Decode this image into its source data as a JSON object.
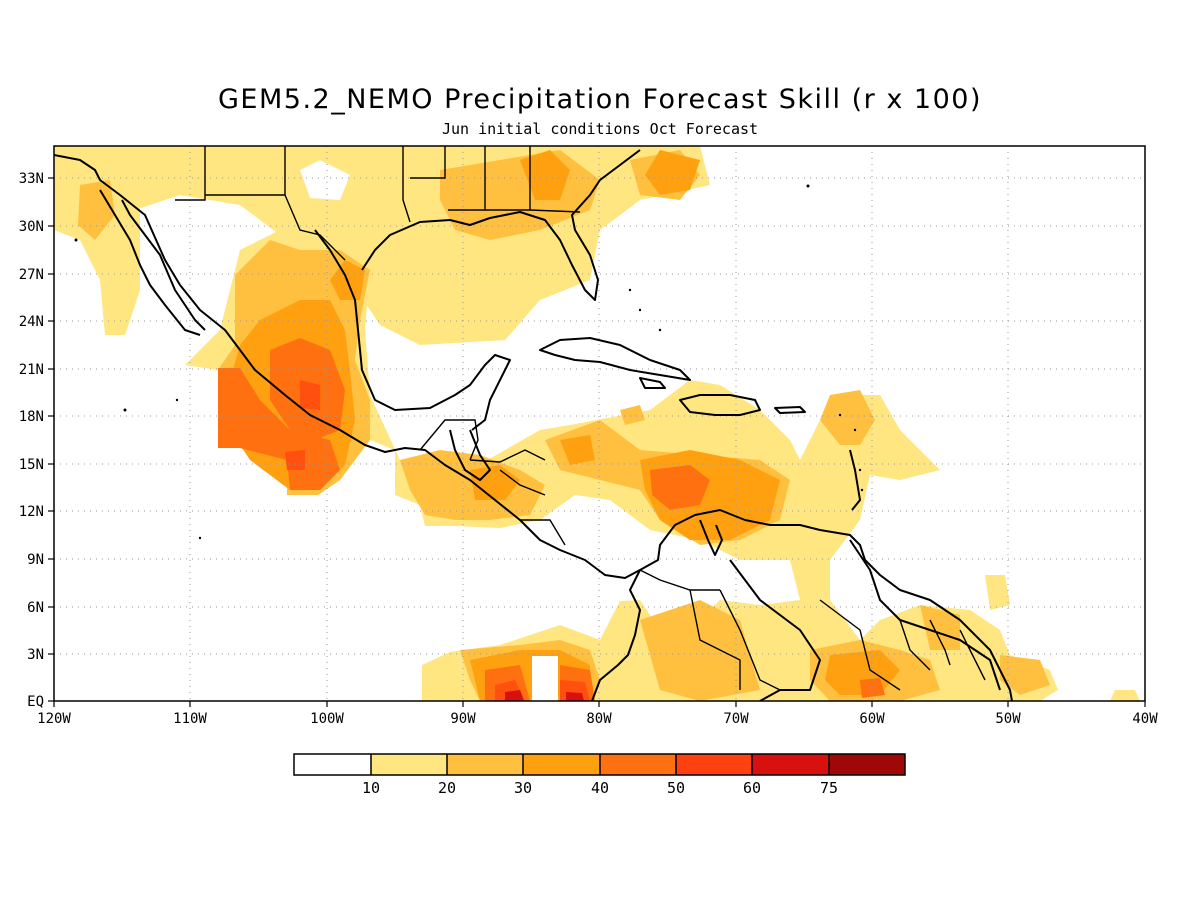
{
  "title": "GEM5.2_NEMO Precipitation Forecast Skill (r x 100)",
  "subtitle": "Jun initial conditions  Oct Forecast",
  "map": {
    "region": "Central America and Caribbean",
    "lon_range": [
      -120,
      -40
    ],
    "lat_range": [
      0,
      35
    ],
    "grid": "dotted",
    "x_ticks": [
      "120W",
      "110W",
      "100W",
      "90W",
      "80W",
      "70W",
      "60W",
      "50W",
      "40W"
    ],
    "y_ticks": [
      "EQ",
      "3N",
      "6N",
      "9N",
      "12N",
      "15N",
      "18N",
      "21N",
      "24N",
      "27N",
      "30N",
      "33N"
    ]
  },
  "colorbar": {
    "labels": [
      "10",
      "20",
      "30",
      "40",
      "50",
      "60",
      "75"
    ],
    "colors": [
      "#ffffff",
      "#ffe680",
      "#ffc040",
      "#ffa010",
      "#ff7010",
      "#ff5010",
      "#d81010",
      "#a00808"
    ]
  }
}
